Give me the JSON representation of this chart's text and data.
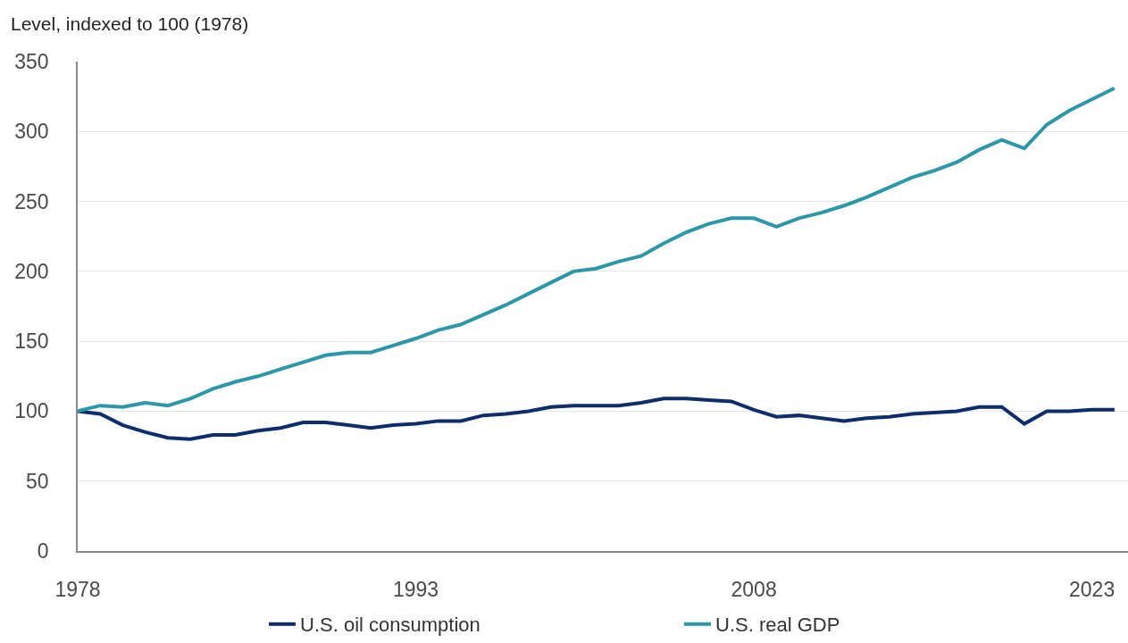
{
  "chart_data": {
    "type": "line",
    "ylabel": "Level, indexed to 100 (1978)",
    "x": [
      1978,
      1979,
      1980,
      1981,
      1982,
      1983,
      1984,
      1985,
      1986,
      1987,
      1988,
      1989,
      1990,
      1991,
      1992,
      1993,
      1994,
      1995,
      1996,
      1997,
      1998,
      1999,
      2000,
      2001,
      2002,
      2003,
      2004,
      2005,
      2006,
      2007,
      2008,
      2009,
      2010,
      2011,
      2012,
      2013,
      2014,
      2015,
      2016,
      2017,
      2018,
      2019,
      2020,
      2021,
      2022,
      2023,
      2024
    ],
    "series": [
      {
        "name": "U.S. oil consumption",
        "color": "#0d2d6c",
        "values": [
          100,
          98,
          90,
          85,
          81,
          80,
          83,
          83,
          86,
          88,
          92,
          92,
          90,
          88,
          90,
          91,
          93,
          93,
          97,
          98,
          100,
          103,
          104,
          104,
          104,
          106,
          109,
          109,
          108,
          107,
          101,
          96,
          97,
          95,
          93,
          95,
          96,
          98,
          99,
          100,
          103,
          103,
          91,
          100,
          100,
          101,
          101
        ]
      },
      {
        "name": "U.S. real GDP",
        "color": "#2c97a8",
        "values": [
          100,
          104,
          103,
          106,
          104,
          109,
          116,
          121,
          125,
          130,
          135,
          140,
          142,
          142,
          147,
          152,
          158,
          162,
          169,
          176,
          184,
          192,
          200,
          202,
          207,
          211,
          220,
          228,
          234,
          238,
          238,
          232,
          238,
          242,
          247,
          253,
          260,
          267,
          272,
          278,
          287,
          294,
          288,
          305,
          315,
          323,
          331
        ]
      }
    ],
    "xlim": [
      1978,
      2024.6
    ],
    "xticks": [
      1978,
      1993,
      2008,
      2023
    ],
    "ylim": [
      0,
      350
    ],
    "yticks": [
      0,
      50,
      100,
      150,
      200,
      250,
      300,
      350
    ],
    "grid": "y",
    "legend": "bottom",
    "line_style": "solid"
  }
}
